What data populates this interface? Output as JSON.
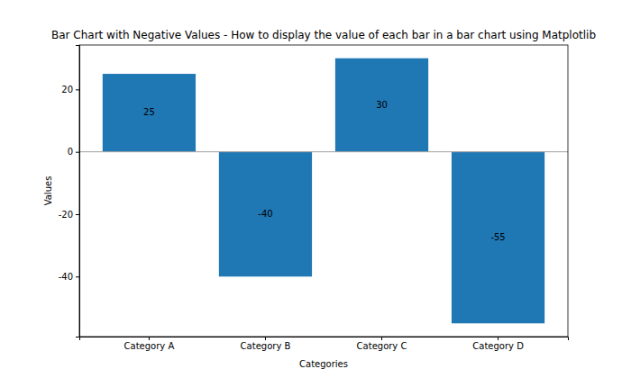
{
  "chart_data": {
    "type": "bar",
    "title": "Bar Chart with Negative Values - How to display the value of each bar in a bar chart using Matplotlib",
    "x_label": "Categories",
    "y_label": "Values",
    "categories": [
      "Category A",
      "Category B",
      "Category C",
      "Category D"
    ],
    "values": [
      25,
      -40,
      30,
      -55
    ],
    "color": "#1f77b4",
    "ylim": [
      -59.25,
      34.25
    ],
    "yticks": [
      -40,
      -20,
      0,
      20
    ],
    "data_labels": true,
    "grid": false
  }
}
